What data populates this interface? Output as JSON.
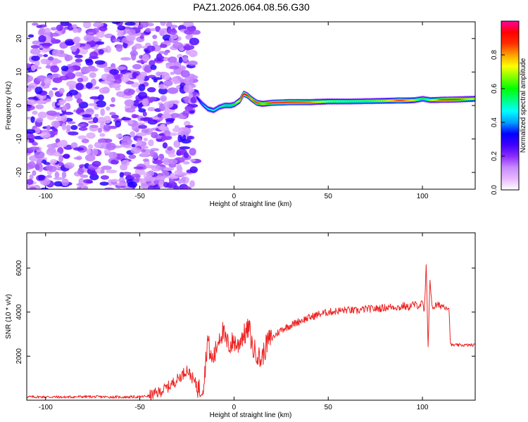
{
  "title": "PAZ1.2026.064.08.56.G30",
  "chart_data": [
    {
      "type": "heatmap",
      "xlabel": "Height of straight line (km)",
      "ylabel": "Frequency (Hz)",
      "xlim": [
        -110,
        128
      ],
      "ylim": [
        -25,
        25
      ],
      "xticks": [
        -100,
        -50,
        0,
        50,
        100
      ],
      "xtick_labels": [
        "-100",
        "-50",
        "0",
        "50",
        "100"
      ],
      "yticks": [
        -20,
        -10,
        0,
        10,
        20
      ],
      "ytick_labels": [
        "-20",
        "-10",
        "0",
        "10",
        "20"
      ],
      "noise_region_x": [
        -110,
        -20
      ],
      "signal_ridge": {
        "x": [
          -20,
          -17,
          -14,
          -11,
          -8,
          -5,
          -2,
          0,
          3,
          5,
          7,
          9,
          12,
          15,
          20,
          30,
          40,
          50,
          60,
          70,
          80,
          88,
          92,
          96,
          100,
          104,
          110,
          118,
          128
        ],
        "freq": [
          2.5,
          0.5,
          -1.0,
          -1.5,
          -0.5,
          0,
          0,
          0.3,
          1.5,
          3.5,
          3.0,
          2.0,
          0.8,
          0.5,
          0.8,
          1.0,
          1.0,
          1.2,
          1.2,
          1.3,
          1.4,
          1.5,
          1.5,
          1.6,
          2.0,
          1.6,
          1.7,
          1.8,
          2.0
        ],
        "amp": [
          0.3,
          0.4,
          0.5,
          0.5,
          0.5,
          0.6,
          0.6,
          0.6,
          0.8,
          1.0,
          0.9,
          0.8,
          0.9,
          0.8,
          0.9,
          0.9,
          0.85,
          0.7,
          0.65,
          0.65,
          0.7,
          0.9,
          0.8,
          0.7,
          0.6,
          0.7,
          0.9,
          0.9,
          0.7
        ]
      },
      "colorbar": {
        "label": "Normalized spectral amplitude",
        "ticks": [
          0.0,
          0.2,
          0.4,
          0.6,
          0.8
        ],
        "tick_labels": [
          "0.0",
          "0.2",
          "0.4",
          "0.6",
          "0.8"
        ],
        "range": [
          0,
          1
        ],
        "colors": [
          "#ffffff",
          "#e8b7ff",
          "#c78bff",
          "#8a2bff",
          "#3f00ff",
          "#0000ff",
          "#00a0ff",
          "#00ffff",
          "#00ff80",
          "#00ff00",
          "#80ff00",
          "#ffff00",
          "#ffa000",
          "#ff3000",
          "#ff0000",
          "#ff00a0"
        ]
      }
    },
    {
      "type": "line",
      "xlabel": "Height of straight line (km)",
      "ylabel": "SNR (10 * v/v)",
      "xlim": [
        -110,
        128
      ],
      "ylim": [
        0,
        7600
      ],
      "xticks": [
        -100,
        -50,
        0,
        50,
        100
      ],
      "xtick_labels": [
        "-100",
        "-50",
        "0",
        "50",
        "100"
      ],
      "yticks": [
        2000,
        4000,
        6000
      ],
      "ytick_labels": [
        "2000",
        "4000",
        "6000"
      ],
      "color": "#ee2222",
      "series": [
        {
          "name": "SNR",
          "x": [
            -110,
            -100,
            -90,
            -80,
            -70,
            -60,
            -50,
            -45,
            -40,
            -35,
            -30,
            -27,
            -25,
            -22,
            -20,
            -18,
            -16,
            -14,
            -12,
            -10,
            -8,
            -6,
            -4,
            -2,
            0,
            2,
            4,
            6,
            8,
            10,
            12,
            14,
            16,
            18,
            20,
            25,
            30,
            35,
            40,
            45,
            50,
            55,
            60,
            65,
            70,
            75,
            80,
            85,
            88,
            90,
            92,
            95,
            98,
            100,
            101,
            102,
            103,
            104,
            105,
            107,
            110,
            113,
            114,
            115,
            120,
            128
          ],
          "y": [
            150,
            150,
            140,
            160,
            150,
            140,
            150,
            200,
            350,
            600,
            950,
            1200,
            1400,
            1000,
            700,
            450,
            800,
            2800,
            1800,
            2100,
            2900,
            3100,
            2600,
            2500,
            2700,
            2450,
            2900,
            3000,
            3300,
            2300,
            2200,
            1800,
            2200,
            2700,
            2800,
            3200,
            3400,
            3600,
            3750,
            3900,
            4000,
            4050,
            4100,
            4050,
            4150,
            4150,
            4200,
            4250,
            4200,
            4300,
            4200,
            4350,
            4300,
            4400,
            4000,
            6000,
            2500,
            5600,
            4200,
            4300,
            4300,
            4250,
            4200,
            2500,
            2500,
            2500
          ]
        }
      ]
    }
  ]
}
